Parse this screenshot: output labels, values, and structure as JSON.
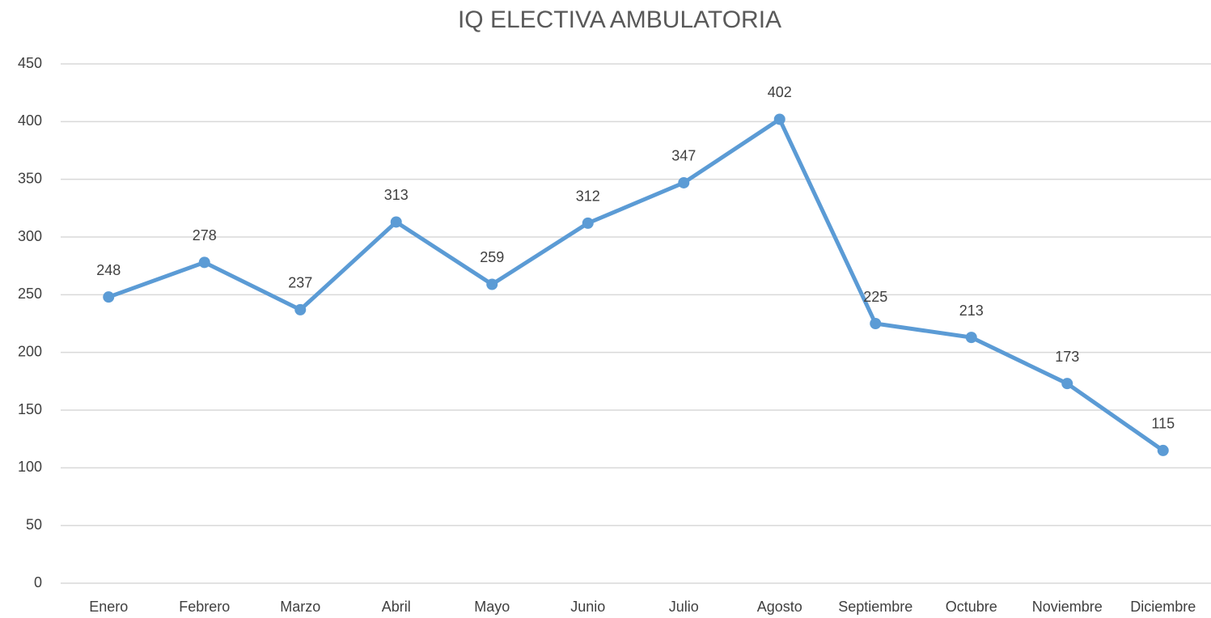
{
  "chart_data": {
    "type": "line",
    "title": "IQ ELECTIVA AMBULATORIA",
    "categories": [
      "Enero",
      "Febrero",
      "Marzo",
      "Abril",
      "Mayo",
      "Junio",
      "Julio",
      "Agosto",
      "Septiembre",
      "Octubre",
      "Noviembre",
      "Diciembre"
    ],
    "values": [
      248,
      278,
      237,
      313,
      259,
      312,
      347,
      402,
      225,
      213,
      173,
      115
    ],
    "color": "#5b9bd5",
    "ylim": [
      0,
      450
    ],
    "yticks": [
      0,
      50,
      100,
      150,
      200,
      250,
      300,
      350,
      400,
      450
    ],
    "grid": true
  }
}
